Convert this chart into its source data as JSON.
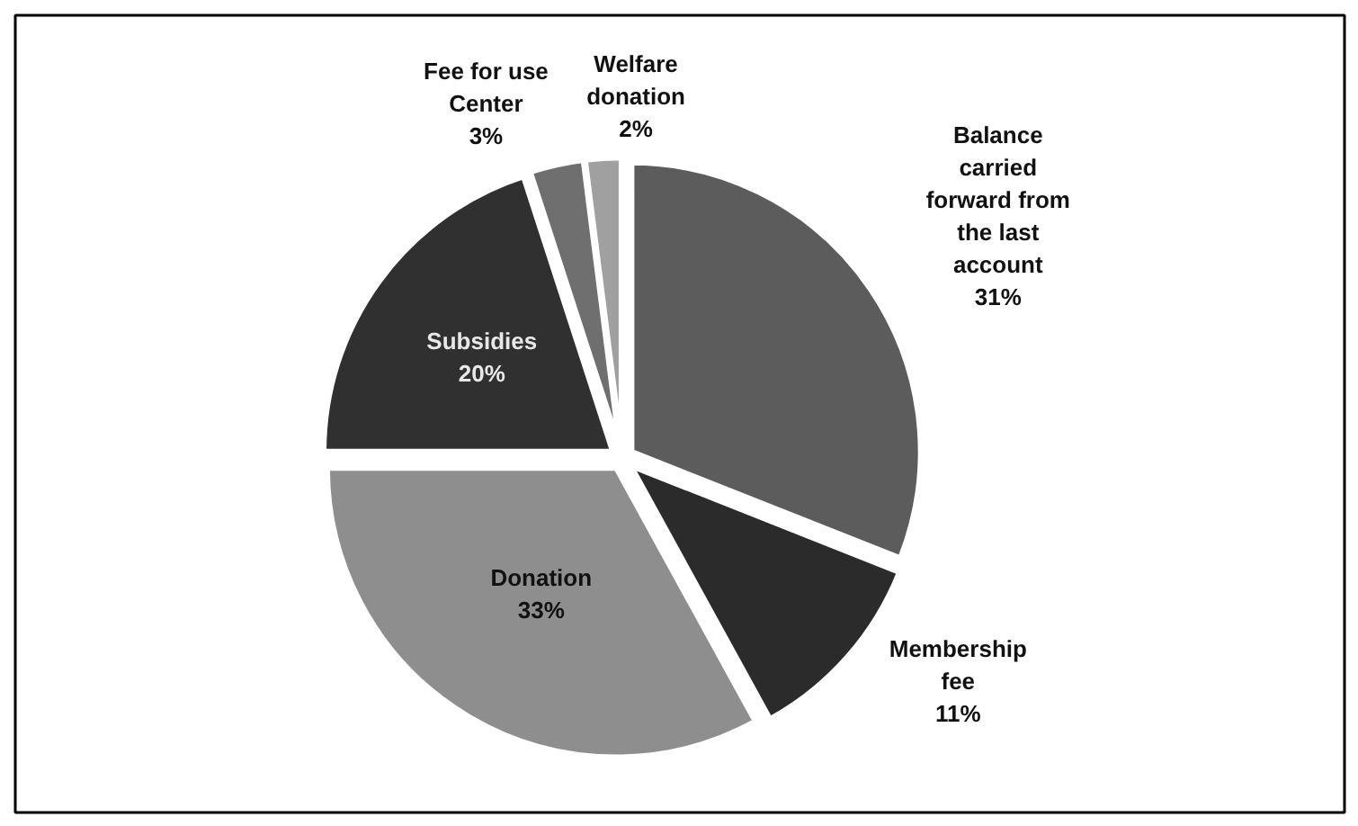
{
  "chart_data": {
    "type": "pie",
    "categories": [
      "Balance carried forward from the last account",
      "Membership fee",
      "Donation",
      "Subsidies",
      "Fee for use Center",
      "Welfare donation"
    ],
    "values": [
      31,
      11,
      33,
      20,
      3,
      2
    ],
    "colors": [
      "#5c5c5c",
      "#2b2b2b",
      "#8e8e8e",
      "#303030",
      "#6f6f6f",
      "#a0a0a0"
    ],
    "value_labels": [
      "31%",
      "11%",
      "33%",
      "20%",
      "3%",
      "2%"
    ]
  }
}
